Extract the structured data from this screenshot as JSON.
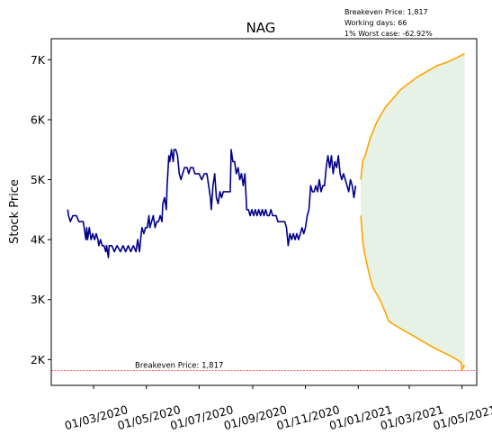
{
  "chart_data": {
    "type": "line",
    "title": "NAG",
    "ylabel": "Stock Price",
    "xlabel": "",
    "annotation_lines": [
      "Breakeven Price: 1,817",
      "Working days: 66",
      "1% Worst case: -62.92%"
    ],
    "breakeven": {
      "value": 1817,
      "label": "Breakeven Price: 1,817",
      "color": "#ff0000"
    },
    "ylim": [
      1570,
      7350
    ],
    "yticks": [
      {
        "value": 2000,
        "label": "2K"
      },
      {
        "value": 3000,
        "label": "3K"
      },
      {
        "value": 4000,
        "label": "4K"
      },
      {
        "value": 5000,
        "label": "5K"
      },
      {
        "value": 6000,
        "label": "6K"
      },
      {
        "value": 7000,
        "label": "7K"
      }
    ],
    "xlim": [
      "2020-01-12",
      "2021-05-18"
    ],
    "xticks": [
      {
        "date": "2020-03-01",
        "label": "01/03/2020"
      },
      {
        "date": "2020-05-01",
        "label": "01/05/2020"
      },
      {
        "date": "2020-07-01",
        "label": "01/07/2020"
      },
      {
        "date": "2020-09-01",
        "label": "01/09/2020"
      },
      {
        "date": "2020-11-01",
        "label": "01/11/2020"
      },
      {
        "date": "2021-01-01",
        "label": "01/01/2021"
      },
      {
        "date": "2021-03-01",
        "label": "01/03/2021"
      },
      {
        "date": "2021-05-01",
        "label": "01/05/2021"
      }
    ],
    "colors": {
      "history": "#00008b",
      "projection": "#ffa500",
      "band": "#e5f2e5"
    },
    "history": [
      [
        "2020-01-31",
        4500
      ],
      [
        "2020-02-01",
        4400
      ],
      [
        "2020-02-03",
        4300
      ],
      [
        "2020-02-06",
        4400
      ],
      [
        "2020-02-10",
        4400
      ],
      [
        "2020-02-13",
        4300
      ],
      [
        "2020-02-15",
        4300
      ],
      [
        "2020-02-18",
        4300
      ],
      [
        "2020-02-21",
        4000
      ],
      [
        "2020-02-22",
        4200
      ],
      [
        "2020-02-23",
        4000
      ],
      [
        "2020-02-25",
        4200
      ],
      [
        "2020-02-27",
        4000
      ],
      [
        "2020-02-29",
        4100
      ],
      [
        "2020-03-02",
        4000
      ],
      [
        "2020-03-04",
        4100
      ],
      [
        "2020-03-06",
        4000
      ],
      [
        "2020-03-07",
        3900
      ],
      [
        "2020-03-09",
        4000
      ],
      [
        "2020-03-11",
        3900
      ],
      [
        "2020-03-13",
        3900
      ],
      [
        "2020-03-15",
        3800
      ],
      [
        "2020-03-16",
        3900
      ],
      [
        "2020-03-18",
        3700
      ],
      [
        "2020-03-19",
        3900
      ],
      [
        "2020-03-22",
        3900
      ],
      [
        "2020-03-25",
        3800
      ],
      [
        "2020-03-28",
        3900
      ],
      [
        "2020-04-01",
        3800
      ],
      [
        "2020-04-04",
        3900
      ],
      [
        "2020-04-07",
        3800
      ],
      [
        "2020-04-10",
        3900
      ],
      [
        "2020-04-13",
        3800
      ],
      [
        "2020-04-16",
        3900
      ],
      [
        "2020-04-19",
        3800
      ],
      [
        "2020-04-21",
        4000
      ],
      [
        "2020-04-23",
        3800
      ],
      [
        "2020-04-25",
        4100
      ],
      [
        "2020-04-26",
        4200
      ],
      [
        "2020-04-28",
        4100
      ],
      [
        "2020-04-30",
        4200
      ],
      [
        "2020-05-02",
        4200
      ],
      [
        "2020-05-04",
        4400
      ],
      [
        "2020-05-05",
        4200
      ],
      [
        "2020-05-07",
        4300
      ],
      [
        "2020-05-09",
        4400
      ],
      [
        "2020-05-11",
        4200
      ],
      [
        "2020-05-13",
        4300
      ],
      [
        "2020-05-15",
        4300
      ],
      [
        "2020-05-17",
        4400
      ],
      [
        "2020-05-19",
        4300
      ],
      [
        "2020-05-20",
        4600
      ],
      [
        "2020-05-22",
        4700
      ],
      [
        "2020-05-24",
        4500
      ],
      [
        "2020-05-25",
        4900
      ],
      [
        "2020-05-27",
        5400
      ],
      [
        "2020-05-28",
        5300
      ],
      [
        "2020-05-30",
        5500
      ],
      [
        "2020-06-01",
        5300
      ],
      [
        "2020-06-02",
        5500
      ],
      [
        "2020-06-04",
        5500
      ],
      [
        "2020-06-06",
        5400
      ],
      [
        "2020-06-08",
        5100
      ],
      [
        "2020-06-10",
        5000
      ],
      [
        "2020-06-12",
        5100
      ],
      [
        "2020-06-14",
        5200
      ],
      [
        "2020-06-17",
        5200
      ],
      [
        "2020-06-19",
        5100
      ],
      [
        "2020-06-21",
        5200
      ],
      [
        "2020-06-24",
        5200
      ],
      [
        "2020-06-26",
        5100
      ],
      [
        "2020-06-28",
        5100
      ],
      [
        "2020-07-01",
        5100
      ],
      [
        "2020-07-04",
        5000
      ],
      [
        "2020-07-07",
        5100
      ],
      [
        "2020-07-10",
        5100
      ],
      [
        "2020-07-12",
        4900
      ],
      [
        "2020-07-14",
        4700
      ],
      [
        "2020-07-15",
        4500
      ],
      [
        "2020-07-17",
        4900
      ],
      [
        "2020-07-19",
        5100
      ],
      [
        "2020-07-21",
        4700
      ],
      [
        "2020-07-23",
        4600
      ],
      [
        "2020-07-25",
        4800
      ],
      [
        "2020-07-27",
        4700
      ],
      [
        "2020-07-29",
        4800
      ],
      [
        "2020-08-01",
        4800
      ],
      [
        "2020-08-04",
        4800
      ],
      [
        "2020-08-06",
        4800
      ],
      [
        "2020-08-07",
        5500
      ],
      [
        "2020-08-09",
        5300
      ],
      [
        "2020-08-11",
        5300
      ],
      [
        "2020-08-13",
        5100
      ],
      [
        "2020-08-15",
        5200
      ],
      [
        "2020-08-17",
        5000
      ],
      [
        "2020-08-19",
        5100
      ],
      [
        "2020-08-21",
        4900
      ],
      [
        "2020-08-23",
        5100
      ],
      [
        "2020-08-25",
        4500
      ],
      [
        "2020-08-27",
        4500
      ],
      [
        "2020-08-29",
        4400
      ],
      [
        "2020-08-31",
        4500
      ],
      [
        "2020-09-02",
        4400
      ],
      [
        "2020-09-04",
        4500
      ],
      [
        "2020-09-06",
        4400
      ],
      [
        "2020-09-08",
        4500
      ],
      [
        "2020-09-10",
        4400
      ],
      [
        "2020-09-12",
        4500
      ],
      [
        "2020-09-14",
        4400
      ],
      [
        "2020-09-16",
        4500
      ],
      [
        "2020-09-18",
        4400
      ],
      [
        "2020-09-20",
        4400
      ],
      [
        "2020-09-22",
        4500
      ],
      [
        "2020-09-24",
        4400
      ],
      [
        "2020-09-26",
        4400
      ],
      [
        "2020-09-28",
        4400
      ],
      [
        "2020-09-30",
        4300
      ],
      [
        "2020-10-02",
        4300
      ],
      [
        "2020-10-04",
        4300
      ],
      [
        "2020-10-06",
        4300
      ],
      [
        "2020-10-08",
        4300
      ],
      [
        "2020-10-10",
        4200
      ],
      [
        "2020-10-12",
        3900
      ],
      [
        "2020-10-14",
        4100
      ],
      [
        "2020-10-16",
        4000
      ],
      [
        "2020-10-18",
        4100
      ],
      [
        "2020-10-20",
        4000
      ],
      [
        "2020-10-22",
        4100
      ],
      [
        "2020-10-24",
        4000
      ],
      [
        "2020-10-26",
        4100
      ],
      [
        "2020-10-28",
        4200
      ],
      [
        "2020-10-30",
        4100
      ],
      [
        "2020-11-01",
        4200
      ],
      [
        "2020-11-03",
        4400
      ],
      [
        "2020-11-05",
        4500
      ],
      [
        "2020-11-07",
        4900
      ],
      [
        "2020-11-09",
        4800
      ],
      [
        "2020-11-11",
        4800
      ],
      [
        "2020-11-13",
        4900
      ],
      [
        "2020-11-15",
        4800
      ],
      [
        "2020-11-17",
        5000
      ],
      [
        "2020-11-19",
        4800
      ],
      [
        "2020-11-21",
        4900
      ],
      [
        "2020-11-23",
        4900
      ],
      [
        "2020-11-25",
        5200
      ],
      [
        "2020-11-27",
        5400
      ],
      [
        "2020-11-29",
        5200
      ],
      [
        "2020-12-01",
        5400
      ],
      [
        "2020-12-03",
        5100
      ],
      [
        "2020-12-05",
        5300
      ],
      [
        "2020-12-07",
        5200
      ],
      [
        "2020-12-09",
        5400
      ],
      [
        "2020-12-11",
        5100
      ],
      [
        "2020-12-13",
        5000
      ],
      [
        "2020-12-15",
        5100
      ],
      [
        "2020-12-17",
        5000
      ],
      [
        "2020-12-19",
        4900
      ],
      [
        "2020-12-21",
        4800
      ],
      [
        "2020-12-23",
        5000
      ],
      [
        "2020-12-25",
        4900
      ],
      [
        "2020-12-27",
        4700
      ],
      [
        "2020-12-29",
        4900
      ]
    ],
    "projection_upper": [
      [
        "2021-01-04",
        5000
      ],
      [
        "2021-01-06",
        5300
      ],
      [
        "2021-01-09",
        5400
      ],
      [
        "2021-01-12",
        5550
      ],
      [
        "2021-01-15",
        5700
      ],
      [
        "2021-01-18",
        5800
      ],
      [
        "2021-01-22",
        5950
      ],
      [
        "2021-01-26",
        6050
      ],
      [
        "2021-02-01",
        6200
      ],
      [
        "2021-02-07",
        6300
      ],
      [
        "2021-02-13",
        6400
      ],
      [
        "2021-02-19",
        6500
      ],
      [
        "2021-02-25",
        6570
      ],
      [
        "2021-03-03",
        6630
      ],
      [
        "2021-03-09",
        6700
      ],
      [
        "2021-03-15",
        6750
      ],
      [
        "2021-03-21",
        6800
      ],
      [
        "2021-03-27",
        6850
      ],
      [
        "2021-04-02",
        6900
      ],
      [
        "2021-04-08",
        6930
      ],
      [
        "2021-04-14",
        6960
      ],
      [
        "2021-04-20",
        7000
      ],
      [
        "2021-04-26",
        7040
      ],
      [
        "2021-05-01",
        7080
      ],
      [
        "2021-05-04",
        7100
      ]
    ],
    "projection_lower": [
      [
        "2021-01-04",
        4400
      ],
      [
        "2021-01-06",
        4000
      ],
      [
        "2021-01-08",
        3800
      ],
      [
        "2021-01-11",
        3600
      ],
      [
        "2021-01-14",
        3400
      ],
      [
        "2021-01-18",
        3200
      ],
      [
        "2021-01-22",
        3100
      ],
      [
        "2021-01-26",
        3000
      ],
      [
        "2021-02-01",
        2800
      ],
      [
        "2021-02-05",
        2650
      ],
      [
        "2021-02-09",
        2600
      ],
      [
        "2021-02-15",
        2550
      ],
      [
        "2021-02-21",
        2500
      ],
      [
        "2021-02-27",
        2450
      ],
      [
        "2021-03-05",
        2400
      ],
      [
        "2021-03-11",
        2350
      ],
      [
        "2021-03-17",
        2300
      ],
      [
        "2021-03-23",
        2250
      ],
      [
        "2021-03-29",
        2200
      ],
      [
        "2021-04-05",
        2150
      ],
      [
        "2021-04-12",
        2100
      ],
      [
        "2021-04-19",
        2050
      ],
      [
        "2021-04-25",
        2000
      ],
      [
        "2021-04-30",
        1950
      ],
      [
        "2021-05-01",
        1820
      ],
      [
        "2021-05-03",
        1900
      ],
      [
        "2021-05-04",
        1880
      ]
    ]
  }
}
